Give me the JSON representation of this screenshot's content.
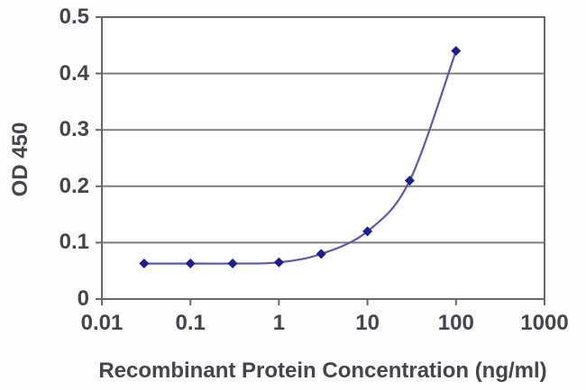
{
  "figure": {
    "background_color": "#fdfdfd",
    "text_color": "#45454d"
  },
  "chart_data": {
    "type": "line",
    "title": "",
    "xlabel": "Recombinant Protein Concentration (ng/ml)",
    "ylabel": "OD 450",
    "x_scale": "log",
    "y_scale": "linear",
    "xlim": [
      0.01,
      1000
    ],
    "ylim": [
      0,
      0.5
    ],
    "x_ticks": [
      0.01,
      0.1,
      1,
      10,
      100,
      1000
    ],
    "x_tick_labels": [
      "0.01",
      "0.1",
      "1",
      "10",
      "100",
      "1000"
    ],
    "y_ticks": [
      0,
      0.1,
      0.2,
      0.3,
      0.4,
      0.5
    ],
    "y_tick_labels": [
      "0",
      "0.1",
      "0.2",
      "0.3",
      "0.4",
      "0.5"
    ],
    "grid": "horizontal-major",
    "legend": "none",
    "series": [
      {
        "name": "standard-curve",
        "x": [
          0.03,
          0.1,
          0.3,
          1,
          3,
          10,
          30,
          100
        ],
        "y": [
          0.063,
          0.063,
          0.063,
          0.065,
          0.08,
          0.12,
          0.21,
          0.44
        ],
        "marker": "diamond",
        "line_color": "#5a5aad",
        "marker_color": "#1e1e8f"
      }
    ],
    "colors": {
      "gridline": "#7d7d7d",
      "plot_border": "#686868",
      "tick": "#686868",
      "plot_background": "#ffffff"
    }
  }
}
